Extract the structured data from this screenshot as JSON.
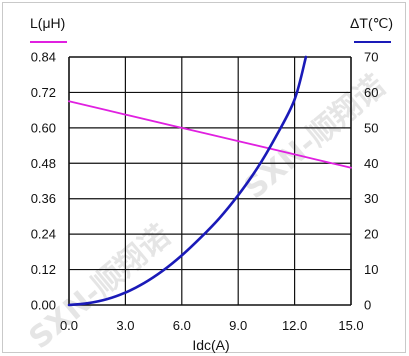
{
  "chart_data": {
    "type": "line",
    "xlabel": "Idc(A)",
    "ylabel_left": "L(μH)",
    "ylabel_right": "ΔT(℃)",
    "xlim": [
      0,
      15
    ],
    "ylim_left": [
      0,
      0.84
    ],
    "ylim_right": [
      0,
      70
    ],
    "x_ticks": [
      "0.0",
      "3.0",
      "6.0",
      "9.0",
      "12.0",
      "15.0"
    ],
    "y_left_ticks": [
      "0.00",
      "0.12",
      "0.24",
      "0.36",
      "0.48",
      "0.60",
      "0.72",
      "0.84"
    ],
    "y_right_ticks": [
      "0",
      "10",
      "20",
      "30",
      "40",
      "50",
      "60",
      "70"
    ],
    "grid": true,
    "series": [
      {
        "axis": "left",
        "color": "#e020e0",
        "x": [
          0,
          3,
          6,
          9,
          12,
          15
        ],
        "values": [
          0.69,
          0.645,
          0.6,
          0.555,
          0.51,
          0.465
        ]
      },
      {
        "axis": "right",
        "color": "#1a1ab8",
        "x": [
          0,
          1,
          2,
          3,
          4,
          5,
          6,
          7,
          8,
          9,
          10,
          11,
          12,
          12.6
        ],
        "values": [
          0,
          0.5,
          1.6,
          3.5,
          6.2,
          9.7,
          14,
          19,
          24.5,
          31,
          38.5,
          47.5,
          58,
          70
        ]
      }
    ],
    "watermark": "SXN-顺翔诺"
  }
}
